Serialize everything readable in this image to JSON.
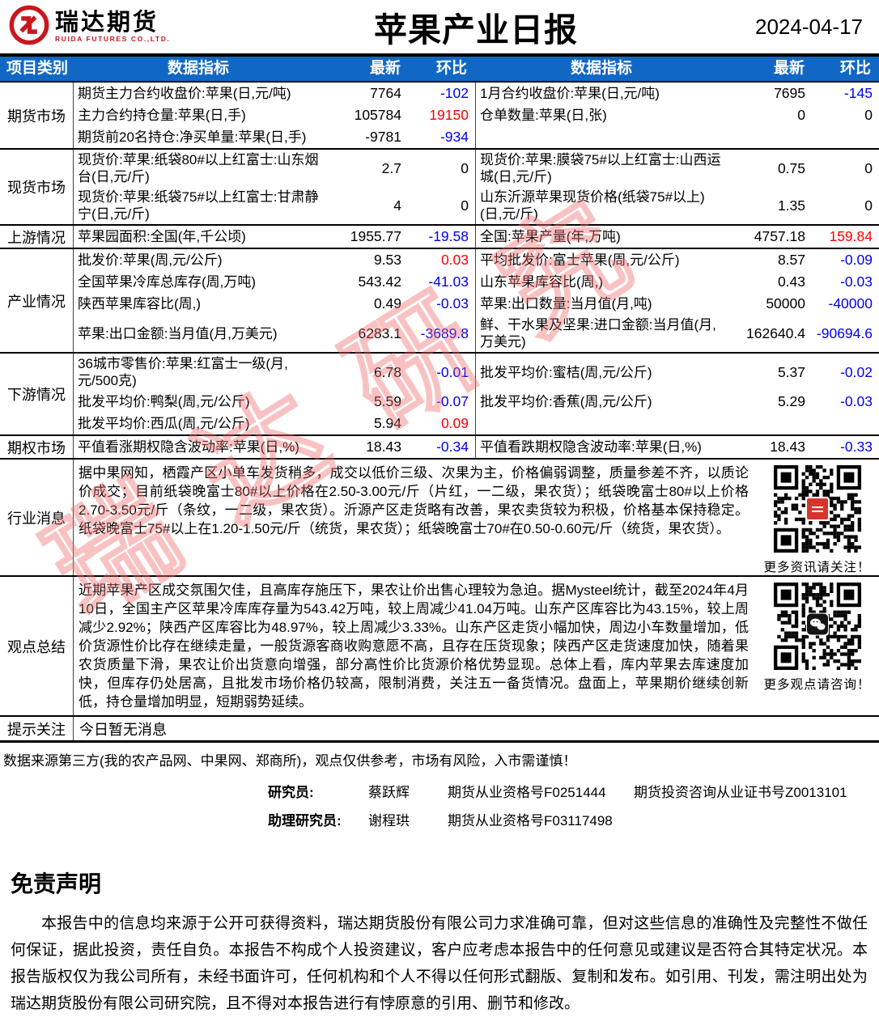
{
  "header": {
    "brand": "瑞达期货",
    "brand_sub": "RUIDA FUTURES CO.,LTD.",
    "title": "苹果产业日报",
    "date": "2024-04-17"
  },
  "table_header": {
    "col_category": "项目类别",
    "col_indicator": "数据指标",
    "col_latest": "最新",
    "col_change": "环比"
  },
  "colors": {
    "header_bg": "#1167C4",
    "positive": "#FE0000",
    "negative": "#0000EE",
    "brand_red": "#C9171E"
  },
  "watermark": "瑞达研究",
  "sections": [
    {
      "id": "futures-market",
      "category": "期货市场",
      "rows": [
        {
          "left": {
            "label": "期货主力合约收盘价:苹果(日,元/吨)",
            "latest": "7764",
            "change": "-102",
            "color": "neg"
          },
          "right": {
            "label": "1月合约收盘价:苹果(日,元/吨)",
            "latest": "7695",
            "change": "-145",
            "color": "neg"
          }
        },
        {
          "left": {
            "label": "主力合约持仓量:苹果(日,手)",
            "latest": "105784",
            "change": "19150",
            "color": "pos"
          },
          "right": {
            "label": "仓单数量:苹果(日,张)",
            "latest": "0",
            "change": "0",
            "color": "zero"
          }
        },
        {
          "left": {
            "label": "期货前20名持仓:净买单量:苹果(日,手)",
            "latest": "-9781",
            "change": "-934",
            "color": "neg"
          },
          "right": null
        }
      ]
    },
    {
      "id": "spot-market",
      "category": "现货市场",
      "rows": [
        {
          "left": {
            "label": "现货价:苹果:纸袋80#以上红富士:山东烟台(日,元/斤)",
            "latest": "2.7",
            "change": "0",
            "color": "zero"
          },
          "right": {
            "label": "现货价:苹果:膜袋75#以上红富士:山西运城(日,元/斤)",
            "latest": "0.75",
            "change": "0",
            "color": "zero"
          }
        },
        {
          "left": {
            "label": "现货价:苹果:纸袋75#以上红富士:甘肃静宁(日,元/斤)",
            "latest": "4",
            "change": "0",
            "color": "zero"
          },
          "right": {
            "label": "山东沂源苹果现货价格(纸袋75#以上)(日,元/斤)",
            "latest": "1.35",
            "change": "0",
            "color": "zero"
          }
        }
      ]
    },
    {
      "id": "upstream",
      "category": "上游情况",
      "rows": [
        {
          "left": {
            "label": "苹果园面积:全国(年,千公顷)",
            "latest": "1955.77",
            "change": "-19.58",
            "color": "neg"
          },
          "right": {
            "label": "全国:苹果产量(年,万吨)",
            "latest": "4757.18",
            "change": "159.84",
            "color": "pos"
          }
        }
      ]
    },
    {
      "id": "industry",
      "category": "产业情况",
      "rows": [
        {
          "left": {
            "label": "批发价:苹果(周,元/公斤)",
            "latest": "9.53",
            "change": "0.03",
            "color": "pos"
          },
          "right": {
            "label": "平均批发价:富士苹果(周,元/公斤)",
            "latest": "8.57",
            "change": "-0.09",
            "color": "neg"
          }
        },
        {
          "left": {
            "label": "全国苹果冷库总库存(周,万吨)",
            "latest": "543.42",
            "change": "-41.03",
            "color": "neg"
          },
          "right": {
            "label": "山东苹果库容比(周,)",
            "latest": "0.43",
            "change": "-0.03",
            "color": "neg"
          }
        },
        {
          "left": {
            "label": "陕西苹果库容比(周,)",
            "latest": "0.49",
            "change": "-0.03",
            "color": "neg"
          },
          "right": {
            "label": "苹果:出口数量:当月值(月,吨)",
            "latest": "50000",
            "change": "-40000",
            "color": "neg"
          }
        },
        {
          "left": {
            "label": "苹果:出口金额:当月值(月,万美元)",
            "latest": "6283.1",
            "change": "-3689.8",
            "color": "neg"
          },
          "right": {
            "label": "鲜、干水果及坚果:进口金额:当月值(月,万美元)",
            "latest": "162640.4",
            "change": "-90694.6",
            "color": "neg"
          }
        }
      ]
    },
    {
      "id": "downstream",
      "category": "下游情况",
      "rows": [
        {
          "left": {
            "label": "36城市零售价:苹果:红富士一级(月,元/500克)",
            "latest": "6.78",
            "change": "-0.01",
            "color": "neg"
          },
          "right": {
            "label": "批发平均价:蜜桔(周,元/公斤)",
            "latest": "5.37",
            "change": "-0.02",
            "color": "neg"
          }
        },
        {
          "left": {
            "label": "批发平均价:鸭梨(周,元/公斤)",
            "latest": "5.59",
            "change": "-0.07",
            "color": "neg"
          },
          "right": {
            "label": "批发平均价:香蕉(周,元/公斤)",
            "latest": "5.29",
            "change": "-0.03",
            "color": "neg"
          }
        },
        {
          "left": {
            "label": "批发平均价:西瓜(周,元/公斤)",
            "latest": "5.94",
            "change": "0.09",
            "color": "pos"
          },
          "right": null
        }
      ]
    },
    {
      "id": "options-market",
      "category": "期权市场",
      "rows": [
        {
          "left": {
            "label": "平值看涨期权隐含波动率:苹果(日,%)",
            "latest": "18.43",
            "change": "-0.34",
            "color": "neg"
          },
          "right": {
            "label": "平值看跌期权隐含波动率:苹果(日,%)",
            "latest": "18.43",
            "change": "-0.33",
            "color": "neg"
          }
        }
      ]
    }
  ],
  "news_section": {
    "category": "行业消息",
    "text": "据中果网知，栖霞产区小单车发货稍多，成交以低价三级、次果为主，价格偏弱调整，质量参差不齐，以质论价成交；目前纸袋晚富士80#以上价格在2.50-3.00元/斤（片红，一二级，果农货）；纸袋晚富士80#以上价格2.70-3.50元/斤（条纹，一二级，果农货）。沂源产区走货略有改善，果农卖货较为积极，价格基本保持稳定。纸袋晚富士75#以上在1.20-1.50元/斤（统货，果农货）；纸袋晚富士70#在0.50-0.60元/斤（统货，果农货）。",
    "qr_caption": "更多资讯请关注！"
  },
  "summary_section": {
    "category": "观点总结",
    "text": "近期苹果产区成交氛围欠佳，且高库存施压下，果农让价出售心理较为急迫。据Mysteel统计，截至2024年4月10日，全国主产区苹果冷库库存量为543.42万吨，较上周减少41.04万吨。山东产区库容比为43.15%，较上周减少2.92%；陕西产区库容比为48.97%，较上周减少3.33%。山东产区走货小幅加快，周边小车数量增加，低价货源性价比存在继续走量，一般货源客商收购意愿不高，且存在压货现象；陕西产区走货速度加快，随着果农货质量下滑，果农让价出货意向增强，部分高性价比货源价格优势显现。总体上看，库内苹果去库速度加快，但库存仍处居高，且批发市场价格仍较高，限制消费，关注五一备货情况。盘面上，苹果期价继续创新低，持仓量增加明显，短期弱势延续。",
    "qr_caption": "更多观点请咨询！"
  },
  "notice_section": {
    "category": "提示关注",
    "text": "今日暂无消息"
  },
  "footer": {
    "source_note": "数据来源第三方(我的农产品网、中果网、郑商所)，观点仅供参考，市场有风险，入市需谨慎！",
    "researcher_label": "研究员:",
    "researcher_name": "蔡跃辉",
    "researcher_cert": "期货从业资格号F0251444",
    "researcher_cert2": "期货投资咨询从业证书号Z0013101",
    "assistant_label": "助理研究员:",
    "assistant_name": "谢程珙",
    "assistant_cert": "期货从业资格号F03117498"
  },
  "disclaimer": {
    "heading": "免责声明",
    "body": "本报告中的信息均来源于公开可获得资料，瑞达期货股份有限公司力求准确可靠，但对这些信息的准确性及完整性不做任何保证，据此投资，责任自负。本报告不构成个人投资建议，客户应考虑本报告中的任何意见或建议是否符合其特定状况。本报告版权仅为我公司所有，未经书面许可，任何机构和个人不得以任何形式翻版、复制和发布。如引用、刊发，需注明出处为瑞达期货股份有限公司研究院，且不得对本报告进行有悖原意的引用、删节和修改。"
  }
}
